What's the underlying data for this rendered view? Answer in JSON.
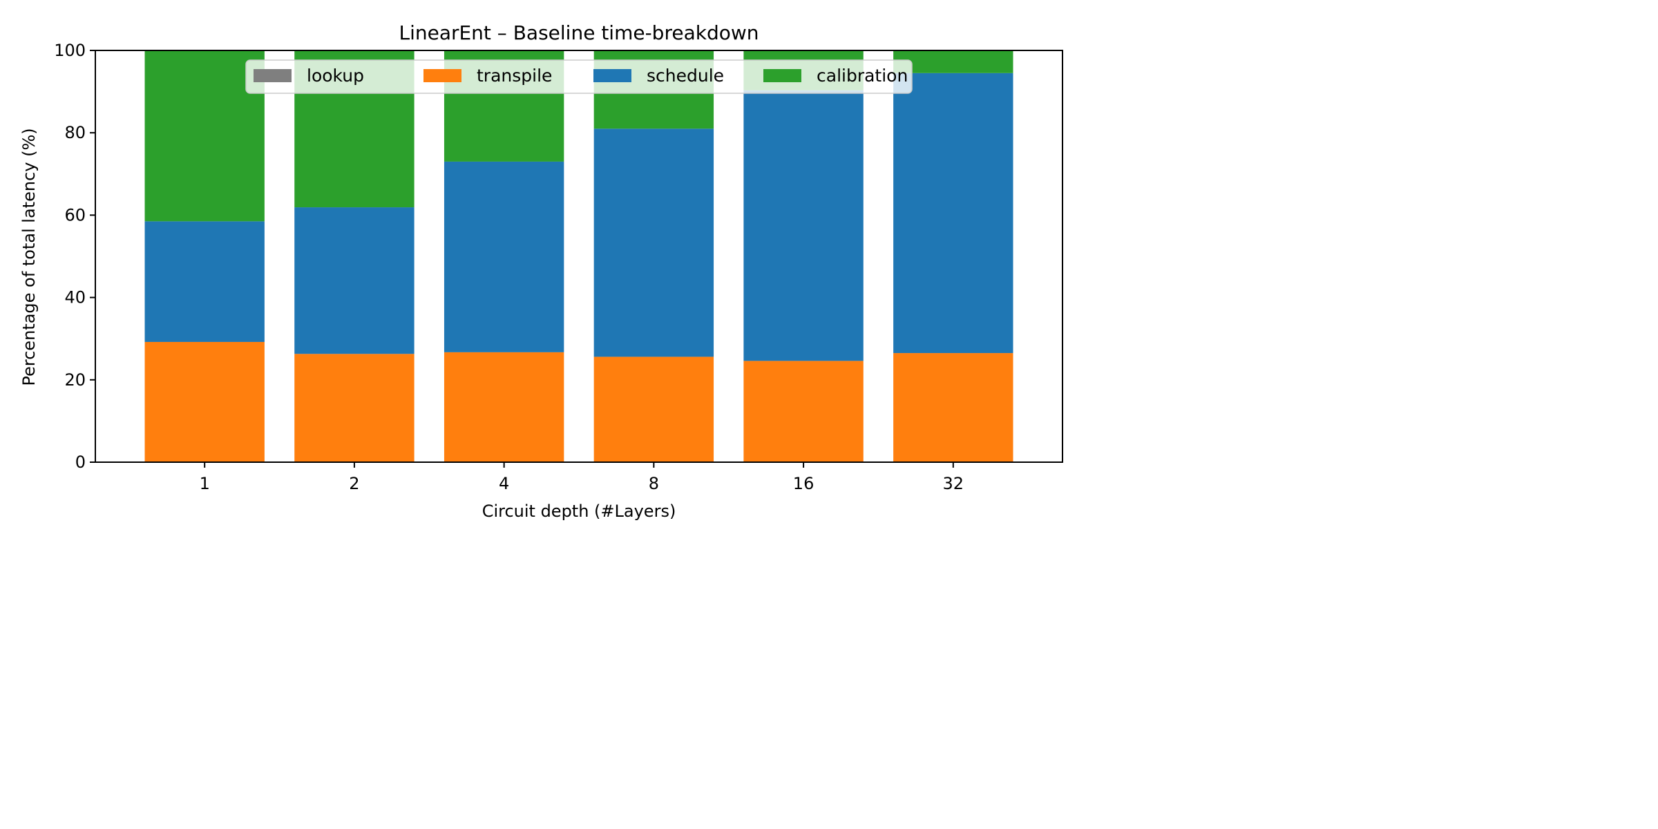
{
  "chart_data": {
    "type": "bar",
    "stacked": true,
    "title": "LinearEnt – Baseline time-breakdown",
    "xlabel": "Circuit depth (#Layers)",
    "ylabel": "Percentage of total latency (%)",
    "ylim": [
      0,
      100
    ],
    "yticks": [
      0,
      20,
      40,
      60,
      80,
      100
    ],
    "categories": [
      "1",
      "2",
      "4",
      "8",
      "16",
      "32"
    ],
    "series": [
      {
        "name": "lookup",
        "color": "#7f7f7f",
        "values": [
          0,
          0,
          0,
          0,
          0,
          0
        ]
      },
      {
        "name": "transpile",
        "color": "#ff7f0e",
        "values": [
          29.2,
          26.3,
          26.7,
          25.6,
          24.6,
          26.5
        ]
      },
      {
        "name": "schedule",
        "color": "#1f77b4",
        "values": [
          29.3,
          35.6,
          46.3,
          55.4,
          65.7,
          68.0
        ]
      },
      {
        "name": "calibration",
        "color": "#2ca02c",
        "values": [
          41.5,
          38.1,
          27.0,
          19.0,
          9.7,
          5.5
        ]
      }
    ],
    "legend": {
      "position": "top-center",
      "columns": 4
    },
    "grid": false
  }
}
